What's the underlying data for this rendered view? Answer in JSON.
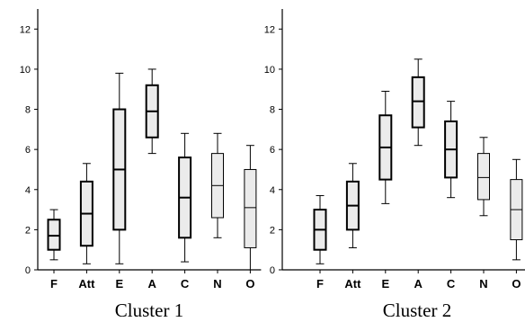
{
  "chart_data": [
    {
      "type": "boxplot",
      "title": "Cluster 1",
      "categories": [
        "F",
        "Att",
        "E",
        "A",
        "C",
        "N",
        "O"
      ],
      "ylim": [
        0,
        13
      ],
      "yticks": [
        "0",
        "2",
        "4",
        "6",
        "8",
        "10",
        "12"
      ],
      "grid": false,
      "boxes": [
        {
          "category": "F",
          "min": 0.5,
          "q1": 1.0,
          "median": 1.7,
          "q3": 2.5,
          "max": 3.0,
          "emphasis": "bold",
          "fill": "#ebebeb"
        },
        {
          "category": "Att",
          "min": 0.3,
          "q1": 1.2,
          "median": 2.8,
          "q3": 4.4,
          "max": 5.3,
          "emphasis": "bold",
          "fill": "#ebebeb"
        },
        {
          "category": "E",
          "min": 0.3,
          "q1": 2.0,
          "median": 5.0,
          "q3": 8.0,
          "max": 9.8,
          "emphasis": "bold",
          "fill": "#ebebeb"
        },
        {
          "category": "A",
          "min": 5.8,
          "q1": 6.6,
          "median": 7.9,
          "q3": 9.2,
          "max": 10.0,
          "emphasis": "bold",
          "fill": "#ebebeb"
        },
        {
          "category": "C",
          "min": 0.4,
          "q1": 1.6,
          "median": 3.6,
          "q3": 5.6,
          "max": 6.8,
          "emphasis": "bold",
          "fill": "#ebebeb"
        },
        {
          "category": "N",
          "min": 1.6,
          "q1": 2.6,
          "median": 4.2,
          "q3": 5.8,
          "max": 6.8,
          "emphasis": "normal",
          "fill": "#ebebeb"
        },
        {
          "category": "O",
          "min": 0.0,
          "q1": 1.1,
          "median": 3.1,
          "q3": 5.0,
          "max": 6.2,
          "emphasis": "normal",
          "fill": "#ebebeb"
        }
      ]
    },
    {
      "type": "boxplot",
      "title": "Cluster 2",
      "categories": [
        "F",
        "Att",
        "E",
        "A",
        "C",
        "N",
        "O"
      ],
      "ylim": [
        0,
        13
      ],
      "yticks": [
        "0",
        "2",
        "4",
        "6",
        "8",
        "10",
        "12"
      ],
      "grid": false,
      "boxes": [
        {
          "category": "F",
          "min": 0.3,
          "q1": 1.0,
          "median": 2.0,
          "q3": 3.0,
          "max": 3.7,
          "emphasis": "bold",
          "fill": "#ebebeb"
        },
        {
          "category": "Att",
          "min": 1.1,
          "q1": 2.0,
          "median": 3.2,
          "q3": 4.4,
          "max": 5.3,
          "emphasis": "bold",
          "fill": "#ebebeb"
        },
        {
          "category": "E",
          "min": 3.3,
          "q1": 4.5,
          "median": 6.1,
          "q3": 7.7,
          "max": 8.9,
          "emphasis": "bold",
          "fill": "#ebebeb"
        },
        {
          "category": "A",
          "min": 6.2,
          "q1": 7.1,
          "median": 8.4,
          "q3": 9.6,
          "max": 10.5,
          "emphasis": "bold",
          "fill": "#ebebeb"
        },
        {
          "category": "C",
          "min": 3.6,
          "q1": 4.6,
          "median": 6.0,
          "q3": 7.4,
          "max": 8.4,
          "emphasis": "bold",
          "fill": "#ebebeb"
        },
        {
          "category": "N",
          "min": 2.7,
          "q1": 3.5,
          "median": 4.6,
          "q3": 5.8,
          "max": 6.6,
          "emphasis": "normal",
          "fill": "#ebebeb"
        },
        {
          "category": "O",
          "min": 0.5,
          "q1": 1.5,
          "median": 3.0,
          "q3": 4.5,
          "max": 5.5,
          "emphasis": "normal",
          "fill": "#ebebeb"
        }
      ]
    }
  ]
}
